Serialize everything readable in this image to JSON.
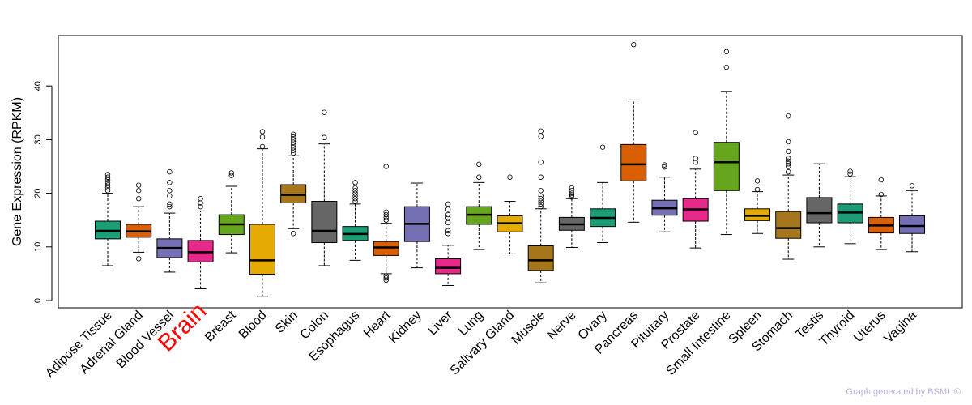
{
  "chart_data": {
    "type": "box",
    "title": "",
    "xlabel": "",
    "ylabel": "Gene Expression (RPKM)",
    "ylim": [
      0,
      50
    ],
    "yticks": [
      0,
      10,
      20,
      30,
      40
    ],
    "highlight": "Brain",
    "highlight_color": "#ff0000",
    "categories": [
      {
        "name": "Adipose Tissue",
        "color": "#1b9e77",
        "min": 6.5,
        "q1": 11.5,
        "median": 13.0,
        "q3": 14.8,
        "max": 20.0,
        "outliers": [
          20.5,
          21.0,
          21.5,
          22.0,
          22.5,
          23.0,
          23.5
        ]
      },
      {
        "name": "Adrenal Gland",
        "color": "#d95f02",
        "min": 9.0,
        "q1": 11.8,
        "median": 12.9,
        "q3": 14.2,
        "max": 17.5,
        "outliers": [
          7.8,
          19.0,
          20.5,
          21.5
        ]
      },
      {
        "name": "Blood Vessel",
        "color": "#7570b3",
        "min": 5.3,
        "q1": 8.0,
        "median": 9.8,
        "q3": 11.5,
        "max": 16.3,
        "outliers": [
          17.5,
          18.0,
          19.5,
          20.5,
          22.0,
          24.0
        ]
      },
      {
        "name": "Brain",
        "color": "#e7298a",
        "min": 2.2,
        "q1": 7.2,
        "median": 9.0,
        "q3": 11.2,
        "max": 16.7,
        "outliers": [
          17.5,
          18.2,
          19.0
        ]
      },
      {
        "name": "Breast",
        "color": "#66a61e",
        "min": 8.9,
        "q1": 12.3,
        "median": 14.2,
        "q3": 16.0,
        "max": 21.3,
        "outliers": [
          23.3,
          23.8
        ]
      },
      {
        "name": "Blood",
        "color": "#e6ab02",
        "min": 0.8,
        "q1": 4.9,
        "median": 7.5,
        "q3": 14.2,
        "max": 28.3,
        "outliers": [
          28.7,
          30.5,
          31.5
        ]
      },
      {
        "name": "Skin",
        "color": "#a6761d",
        "min": 13.4,
        "q1": 18.2,
        "median": 19.7,
        "q3": 21.6,
        "max": 27.0,
        "outliers": [
          12.5,
          27.5,
          28.0,
          28.5,
          29.0,
          29.5,
          30.0,
          30.5,
          31.0
        ]
      },
      {
        "name": "Colon",
        "color": "#666666",
        "min": 6.5,
        "q1": 10.8,
        "median": 13.0,
        "q3": 18.5,
        "max": 29.2,
        "outliers": [
          30.4,
          35.1
        ]
      },
      {
        "name": "Esophagus",
        "color": "#1b9e77",
        "min": 7.5,
        "q1": 11.2,
        "median": 12.4,
        "q3": 13.8,
        "max": 18.0,
        "outliers": [
          18.5,
          19.0,
          19.5,
          20.0,
          20.5,
          21.0,
          22.0
        ]
      },
      {
        "name": "Heart",
        "color": "#d95f02",
        "min": 5.0,
        "q1": 8.4,
        "median": 9.9,
        "q3": 11.0,
        "max": 14.4,
        "outliers": [
          3.8,
          4.2,
          4.6,
          15.0,
          15.5,
          16.0,
          16.5,
          25.0
        ]
      },
      {
        "name": "Kidney",
        "color": "#7570b3",
        "min": 6.1,
        "q1": 11.0,
        "median": 14.3,
        "q3": 17.5,
        "max": 21.9,
        "outliers": []
      },
      {
        "name": "Liver",
        "color": "#e7298a",
        "min": 2.8,
        "q1": 5.0,
        "median": 6.1,
        "q3": 7.8,
        "max": 10.3,
        "outliers": [
          12.5,
          13.0,
          14.5,
          15.5,
          16.0,
          17.0,
          18.0
        ]
      },
      {
        "name": "Lung",
        "color": "#66a61e",
        "min": 9.5,
        "q1": 14.2,
        "median": 16.0,
        "q3": 17.5,
        "max": 22.0,
        "outliers": [
          23.0,
          25.4
        ]
      },
      {
        "name": "Salivary Gland",
        "color": "#e6ab02",
        "min": 8.7,
        "q1": 12.8,
        "median": 14.4,
        "q3": 15.8,
        "max": 18.5,
        "outliers": [
          23.0
        ]
      },
      {
        "name": "Muscle",
        "color": "#a6761d",
        "min": 3.3,
        "q1": 5.6,
        "median": 7.5,
        "q3": 10.2,
        "max": 17.1,
        "outliers": [
          17.5,
          18.0,
          18.5,
          19.0,
          19.5,
          20.5,
          23.0,
          25.8,
          30.6,
          31.6
        ]
      },
      {
        "name": "Nerve",
        "color": "#666666",
        "min": 9.9,
        "q1": 13.1,
        "median": 14.2,
        "q3": 15.5,
        "max": 19.0,
        "outliers": [
          19.3,
          19.7,
          20.0,
          20.5,
          21.0
        ]
      },
      {
        "name": "Ovary",
        "color": "#1b9e77",
        "min": 10.8,
        "q1": 13.8,
        "median": 15.4,
        "q3": 17.1,
        "max": 22.0,
        "outliers": [
          28.6
        ]
      },
      {
        "name": "Pancreas",
        "color": "#d95f02",
        "min": 14.6,
        "q1": 22.3,
        "median": 25.4,
        "q3": 29.1,
        "max": 37.4,
        "outliers": [
          47.7
        ]
      },
      {
        "name": "Pituitary",
        "color": "#7570b3",
        "min": 12.8,
        "q1": 15.9,
        "median": 17.2,
        "q3": 18.7,
        "max": 23.0,
        "outliers": [
          24.9,
          25.3
        ]
      },
      {
        "name": "Prostate",
        "color": "#e7298a",
        "min": 9.8,
        "q1": 14.8,
        "median": 17.0,
        "q3": 19.0,
        "max": 24.5,
        "outliers": [
          25.8,
          26.5,
          31.3
        ]
      },
      {
        "name": "Small Intestine",
        "color": "#66a61e",
        "min": 12.3,
        "q1": 20.5,
        "median": 25.8,
        "q3": 29.5,
        "max": 39.0,
        "outliers": [
          43.5,
          46.4
        ]
      },
      {
        "name": "Spleen",
        "color": "#e6ab02",
        "min": 12.5,
        "q1": 14.9,
        "median": 15.8,
        "q3": 17.1,
        "max": 20.3,
        "outliers": [
          20.7,
          22.3
        ]
      },
      {
        "name": "Stomach",
        "color": "#a6761d",
        "min": 7.7,
        "q1": 11.6,
        "median": 13.5,
        "q3": 16.6,
        "max": 23.4,
        "outliers": [
          24.0,
          25.0,
          25.5,
          26.0,
          26.5,
          27.8,
          29.6,
          34.4
        ]
      },
      {
        "name": "Testis",
        "color": "#666666",
        "min": 10.0,
        "q1": 14.5,
        "median": 16.3,
        "q3": 19.2,
        "max": 25.5,
        "outliers": []
      },
      {
        "name": "Thyroid",
        "color": "#1b9e77",
        "min": 10.6,
        "q1": 14.5,
        "median": 16.4,
        "q3": 18.0,
        "max": 23.1,
        "outliers": [
          23.6,
          24.1
        ]
      },
      {
        "name": "Uterus",
        "color": "#d95f02",
        "min": 9.5,
        "q1": 12.6,
        "median": 14.0,
        "q3": 15.5,
        "max": 19.5,
        "outliers": [
          19.8,
          22.5
        ]
      },
      {
        "name": "Vagina",
        "color": "#7570b3",
        "min": 9.1,
        "q1": 12.5,
        "median": 13.9,
        "q3": 15.8,
        "max": 20.5,
        "outliers": [
          21.4
        ]
      }
    ]
  },
  "footer": {
    "text": "Graph generated by BSML ©"
  }
}
